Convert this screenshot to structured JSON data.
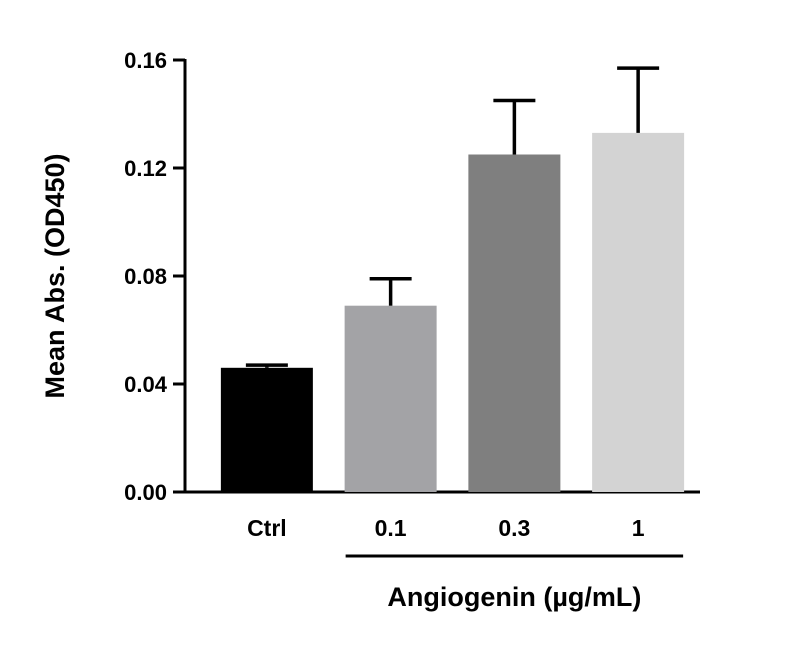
{
  "chart_data": {
    "type": "bar",
    "ylabel": "Mean  Abs. (OD450)",
    "group_label": "Angiogenin (µg/mL)",
    "categories": [
      "Ctrl",
      "0.1",
      "0.3",
      "1"
    ],
    "values": [
      0.046,
      0.069,
      0.125,
      0.133
    ],
    "error": [
      0.001,
      0.01,
      0.02,
      0.024
    ],
    "colors": [
      "#000000",
      "#a3a3a6",
      "#7f7f7f",
      "#d3d3d3"
    ],
    "ylim": [
      0,
      0.16
    ],
    "yticks": [
      "0.00",
      "0.04",
      "0.08",
      "0.12",
      "0.16"
    ],
    "ytick_values": [
      0,
      0.04,
      0.08,
      0.12,
      0.16
    ],
    "error_bars": "upper",
    "grid": false,
    "legend": "none"
  }
}
